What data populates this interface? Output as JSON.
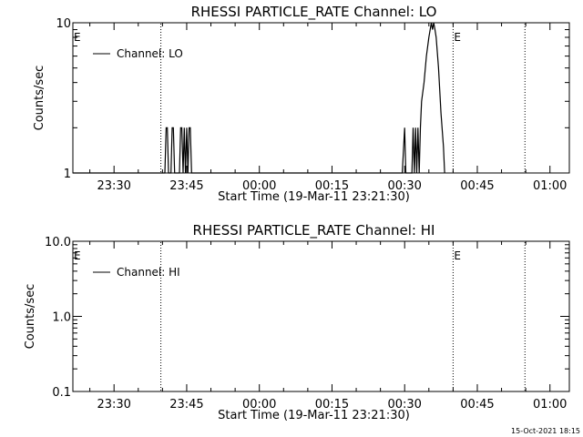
{
  "footer_timestamp": "15-Oct-2021 18:15",
  "chart_data": [
    {
      "type": "line",
      "title": "RHESSI PARTICLE_RATE Channel: LO",
      "xlabel": "Start Time (19-Mar-11 23:21:30)",
      "ylabel": "Counts/sec",
      "yscale": "log",
      "xlim": [
        "23:21:30",
        "01:04:00"
      ],
      "ylim": [
        1,
        10
      ],
      "x_ticks": [
        "23:30",
        "23:45",
        "00:00",
        "00:15",
        "00:30",
        "00:45",
        "01:00"
      ],
      "y_ticks": [
        "1",
        "10"
      ],
      "legend": {
        "placement": "top-left",
        "entries": [
          "Channel: LO"
        ]
      },
      "markers": [
        {
          "time": "23:39:40",
          "label": "E"
        },
        {
          "time": "00:40:00",
          "label": "E"
        },
        {
          "time": "00:54:50",
          "label": ""
        }
      ],
      "series": [
        {
          "name": "Channel: LO",
          "color": "#000000",
          "points": [
            [
              "23:21:30",
              1
            ],
            [
              "23:40:30",
              1
            ],
            [
              "23:40:45",
              2
            ],
            [
              "23:41:00",
              2
            ],
            [
              "23:41:15",
              1
            ],
            [
              "23:41:45",
              1
            ],
            [
              "23:42:00",
              2
            ],
            [
              "23:42:15",
              2
            ],
            [
              "23:42:30",
              1
            ],
            [
              "23:43:30",
              1
            ],
            [
              "23:43:45",
              2
            ],
            [
              "23:44:00",
              2
            ],
            [
              "23:44:15",
              1
            ],
            [
              "23:44:30",
              2
            ],
            [
              "23:44:45",
              1
            ],
            [
              "23:45:00",
              2
            ],
            [
              "23:45:15",
              1
            ],
            [
              "23:45:30",
              2
            ],
            [
              "23:45:45",
              2
            ],
            [
              "23:46:00",
              1
            ],
            [
              "00:29:30",
              1
            ],
            [
              "00:30:00",
              2
            ],
            [
              "00:30:15",
              1
            ],
            [
              "00:31:30",
              1
            ],
            [
              "00:31:45",
              2
            ],
            [
              "00:32:00",
              1
            ],
            [
              "00:32:15",
              2
            ],
            [
              "00:32:30",
              1
            ],
            [
              "00:32:45",
              2
            ],
            [
              "00:33:00",
              1
            ],
            [
              "00:33:15",
              2
            ],
            [
              "00:33:30",
              3
            ],
            [
              "00:34:00",
              4
            ],
            [
              "00:34:30",
              6
            ],
            [
              "00:35:00",
              8
            ],
            [
              "00:35:30",
              10
            ],
            [
              "00:35:45",
              9
            ],
            [
              "00:36:00",
              10
            ],
            [
              "00:36:15",
              9
            ],
            [
              "00:36:30",
              8
            ],
            [
              "00:37:00",
              5
            ],
            [
              "00:37:30",
              2.5
            ],
            [
              "00:38:00",
              1.5
            ],
            [
              "00:38:15",
              1
            ]
          ]
        }
      ]
    },
    {
      "type": "line",
      "title": "RHESSI PARTICLE_RATE Channel: HI",
      "xlabel": "Start Time (19-Mar-11 23:21:30)",
      "ylabel": "Counts/sec",
      "yscale": "log",
      "xlim": [
        "23:21:30",
        "01:04:00"
      ],
      "ylim": [
        0.1,
        10
      ],
      "x_ticks": [
        "23:30",
        "23:45",
        "00:00",
        "00:15",
        "00:30",
        "00:45",
        "01:00"
      ],
      "y_ticks": [
        "0.1",
        "1.0",
        "10.0"
      ],
      "legend": {
        "placement": "top-left",
        "entries": [
          "Channel: HI"
        ]
      },
      "markers": [
        {
          "time": "23:39:40",
          "label": "E"
        },
        {
          "time": "00:40:00",
          "label": "E"
        },
        {
          "time": "00:54:50",
          "label": ""
        }
      ],
      "series": [
        {
          "name": "Channel: HI",
          "color": "#000000",
          "points": []
        }
      ]
    }
  ]
}
